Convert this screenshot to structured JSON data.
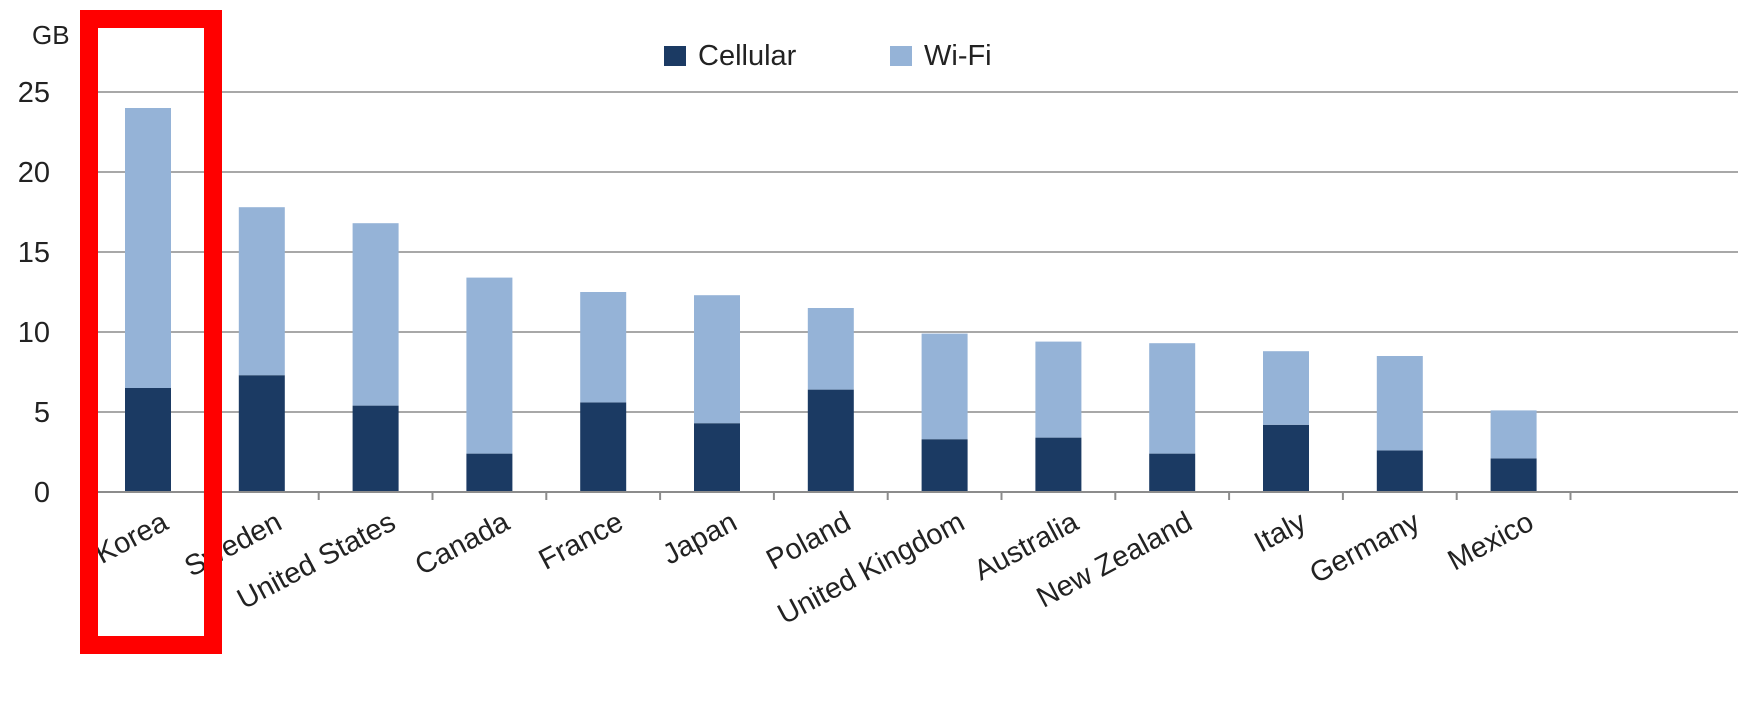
{
  "chart_data": {
    "type": "bar",
    "stacked": true,
    "y_unit": "GB",
    "categories": [
      "Korea",
      "Sweden",
      "United States",
      "Canada",
      "France",
      "Japan",
      "Poland",
      "United Kingdom",
      "Australia",
      "New Zealand",
      "Italy",
      "Germany",
      "Mexico"
    ],
    "series": [
      {
        "name": "Cellular",
        "color": "#1b3a63",
        "values": [
          6.5,
          7.3,
          5.4,
          2.4,
          5.6,
          4.3,
          6.4,
          3.3,
          3.4,
          2.4,
          4.2,
          2.6,
          2.1
        ]
      },
      {
        "name": "Wi-Fi",
        "color": "#95b3d7",
        "values": [
          17.5,
          10.5,
          11.4,
          11.0,
          6.9,
          8.0,
          5.1,
          6.6,
          6.0,
          6.9,
          4.6,
          5.9,
          3.0
        ]
      }
    ],
    "ylim": [
      0,
      25
    ],
    "yticks": [
      0,
      5,
      10,
      15,
      20,
      25
    ],
    "grid": true,
    "legend_position": "top",
    "highlight": {
      "category": "Korea",
      "color": "#ff0000"
    }
  }
}
